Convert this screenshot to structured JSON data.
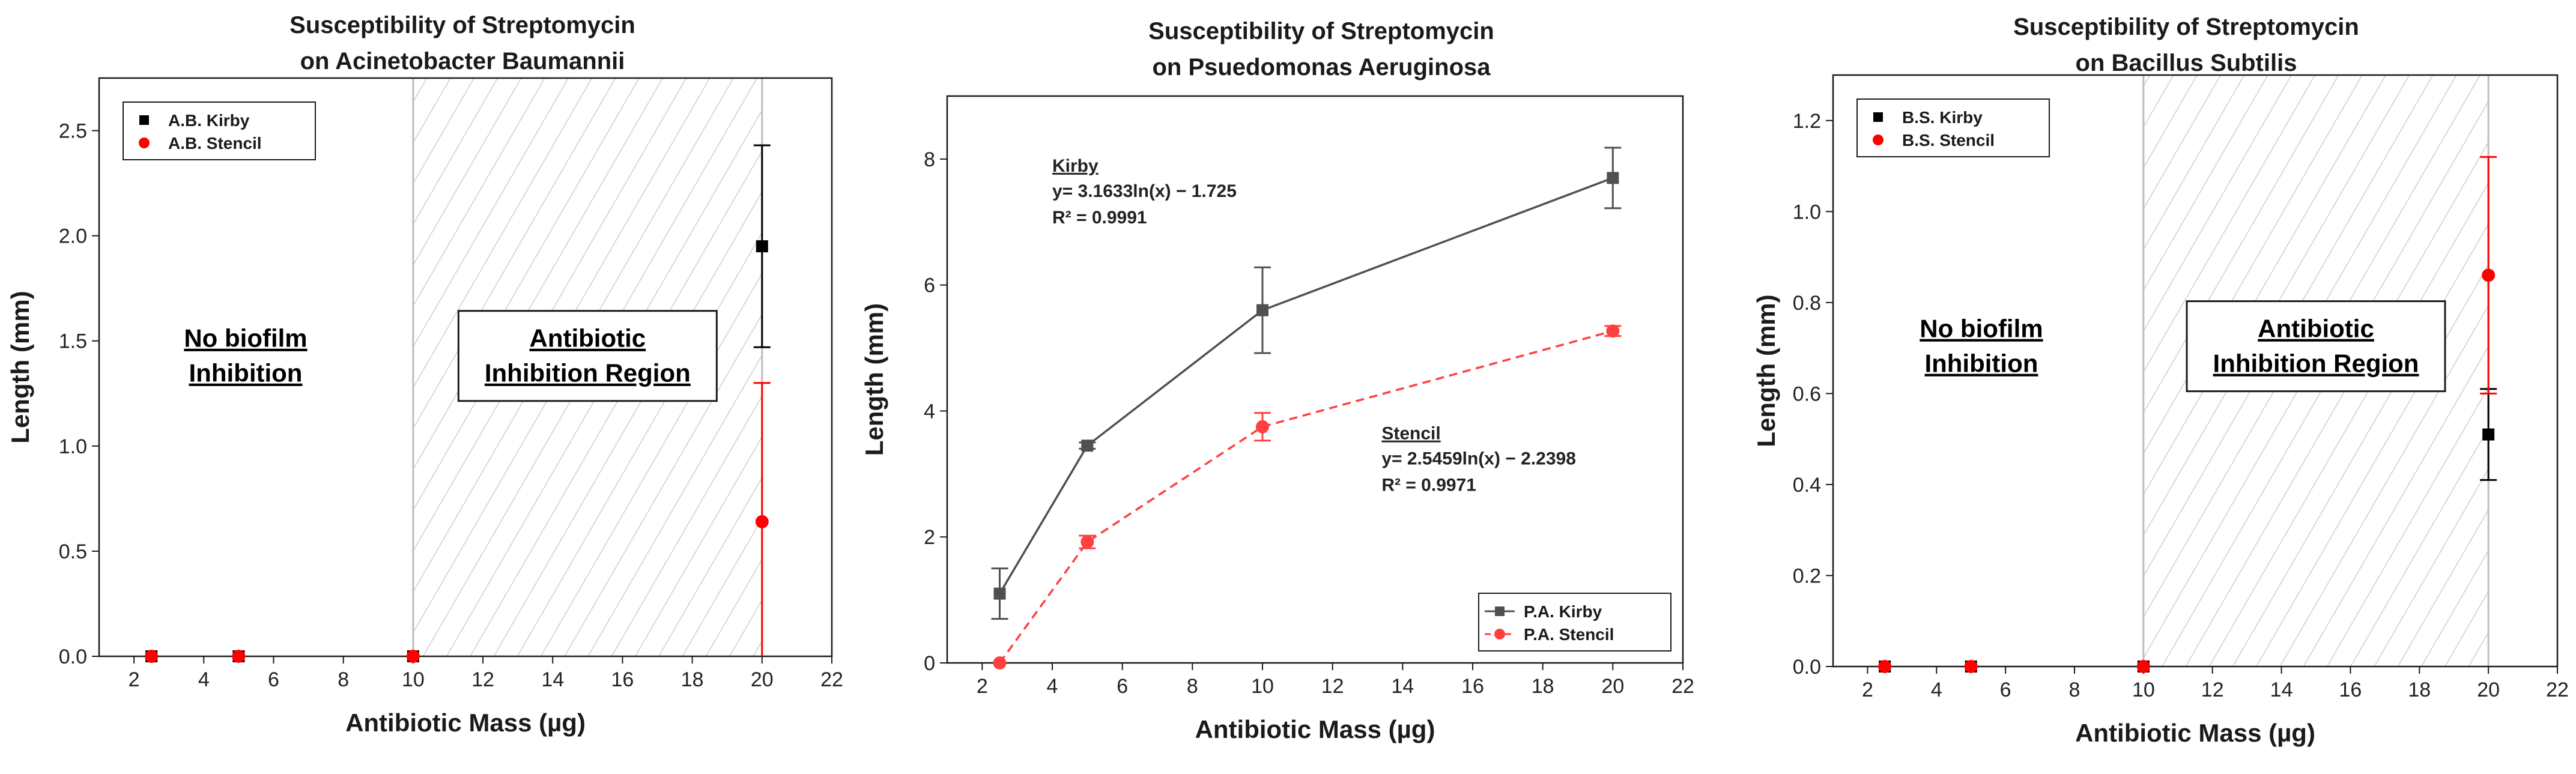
{
  "chart_data": [
    {
      "type": "scatter",
      "title": [
        "Susceptibility of Streptomycin",
        "on Acinetobacter Baumannii"
      ],
      "xlabel": "Antibiotic Mass (µg)",
      "ylabel": "Length (mm)",
      "xlim": [
        1,
        22
      ],
      "ylim": [
        0,
        2.75
      ],
      "xticks": [
        2,
        4,
        6,
        8,
        10,
        12,
        14,
        16,
        18,
        20,
        22
      ],
      "xtick_labels": [
        "2",
        "4",
        "6",
        "8",
        "10",
        "12",
        "14",
        "16",
        "18",
        "20",
        "22"
      ],
      "yticks": [
        0,
        0.5,
        1.0,
        1.5,
        2.0,
        2.5
      ],
      "ytick_labels": [
        "0.0",
        "0.5",
        "1.0",
        "1.5",
        "2.0",
        "2.5"
      ],
      "legend_position": "top-left",
      "hatched_region": [
        10,
        20
      ],
      "annotations": [
        {
          "lines": [
            "No biofilm",
            "Inhibition"
          ],
          "x": 5.2,
          "y": 1.42,
          "boxed": false
        },
        {
          "lines": [
            "Antibiotic",
            "Inhibition Region"
          ],
          "x": 15,
          "y": 1.42,
          "boxed": true
        }
      ],
      "series": [
        {
          "name": "A.B. Kirby",
          "color": "#000000",
          "marker": "square",
          "line": "none",
          "x": [
            2.5,
            5,
            10,
            20
          ],
          "y": [
            0,
            0,
            0,
            1.95
          ],
          "err": [
            0,
            0,
            0,
            0.48
          ]
        },
        {
          "name": "A.B. Stencil",
          "color": "#ff0000",
          "marker": "circle",
          "line": "none",
          "x": [
            2.5,
            5,
            10,
            20
          ],
          "y": [
            0,
            0,
            0,
            0.64
          ],
          "err": [
            0,
            0,
            0,
            0.66
          ]
        }
      ]
    },
    {
      "type": "line",
      "title": [
        "Susceptibility of Streptomycin",
        "on Psuedomonas Aeruginosa"
      ],
      "xlabel": "Antibiotic Mass (µg)",
      "ylabel": "Length (mm)",
      "xlim": [
        1,
        22
      ],
      "ylim": [
        0,
        9
      ],
      "xticks": [
        2,
        4,
        6,
        8,
        10,
        12,
        14,
        16,
        18,
        20,
        22
      ],
      "xtick_labels": [
        "2",
        "4",
        "6",
        "8",
        "10",
        "12",
        "14",
        "16",
        "18",
        "20",
        "22"
      ],
      "yticks": [
        0,
        2,
        4,
        6,
        8
      ],
      "ytick_labels": [
        "0",
        "2",
        "4",
        "6",
        "8"
      ],
      "legend_position": "bottom-right",
      "equations": [
        {
          "header": "Kirby",
          "lines": [
            "y= 3.1633ln(x) − 1.725",
            "R² = 0.9991"
          ],
          "x": 4.0,
          "y": 7.8
        },
        {
          "header": "Stencil",
          "lines": [
            "y= 2.5459ln(x) − 2.2398",
            "R² = 0.9971"
          ],
          "x": 13.4,
          "y": 3.55
        }
      ],
      "series": [
        {
          "name": "P.A. Kirby",
          "color": "#505050",
          "marker": "square",
          "line": "solid",
          "x": [
            2.5,
            5,
            10,
            20
          ],
          "y": [
            1.1,
            3.45,
            5.6,
            7.7
          ],
          "err": [
            0.4,
            0.05,
            0.68,
            0.48
          ]
        },
        {
          "name": "P.A. Stencil",
          "color": "#ff4040",
          "marker": "circle",
          "line": "dashed",
          "x": [
            2.5,
            5,
            10,
            20
          ],
          "y": [
            0,
            1.92,
            3.75,
            5.27
          ],
          "err": [
            0,
            0.1,
            0.22,
            0.08
          ]
        }
      ]
    },
    {
      "type": "scatter",
      "title": [
        "Susceptibility of Streptomycin",
        "on Bacillus Subtilis"
      ],
      "xlabel": "Antibiotic Mass (µg)",
      "ylabel": "Length (mm)",
      "xlim": [
        1,
        22
      ],
      "ylim": [
        0,
        1.3
      ],
      "xticks": [
        2,
        4,
        6,
        8,
        10,
        12,
        14,
        16,
        18,
        20,
        22
      ],
      "xtick_labels": [
        "2",
        "4",
        "6",
        "8",
        "10",
        "12",
        "14",
        "16",
        "18",
        "20",
        "22"
      ],
      "yticks": [
        0,
        0.2,
        0.4,
        0.6,
        0.8,
        1.0,
        1.2
      ],
      "ytick_labels": [
        "0.0",
        "0.2",
        "0.4",
        "0.6",
        "0.8",
        "1.0",
        "1.2"
      ],
      "legend_position": "top-left",
      "hatched_region": [
        10,
        20
      ],
      "annotations": [
        {
          "lines": [
            "No biofilm",
            "Inhibition"
          ],
          "x": 5.3,
          "y": 0.7,
          "boxed": false
        },
        {
          "lines": [
            "Antibiotic",
            "Inhibition Region"
          ],
          "x": 15,
          "y": 0.7,
          "boxed": true
        }
      ],
      "series": [
        {
          "name": "B.S. Kirby",
          "color": "#000000",
          "marker": "square",
          "line": "none",
          "x": [
            2.5,
            5,
            10,
            20
          ],
          "y": [
            0,
            0,
            0,
            0.51
          ],
          "err": [
            0,
            0,
            0,
            0.1
          ]
        },
        {
          "name": "B.S. Stencil",
          "color": "#ff0000",
          "marker": "circle",
          "line": "none",
          "x": [
            2.5,
            5,
            10,
            20
          ],
          "y": [
            0,
            0,
            0,
            0.86
          ],
          "err": [
            0,
            0,
            0,
            0.26
          ]
        }
      ]
    }
  ]
}
